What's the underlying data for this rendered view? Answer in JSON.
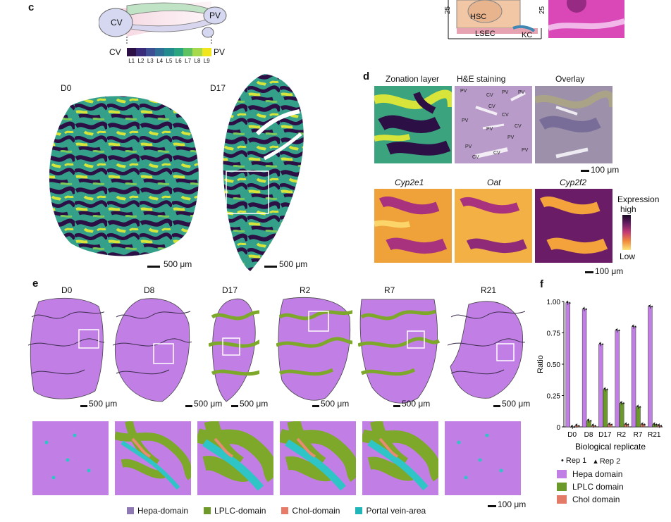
{
  "panels": {
    "c": {
      "letter": "c",
      "diagram": {
        "cv": "CV",
        "pv": "PV"
      },
      "scale": {
        "left": "CV",
        "right": "PV",
        "layers": [
          "L1",
          "L2",
          "L3",
          "L4",
          "L5",
          "L6",
          "L7",
          "L8",
          "L9"
        ],
        "colors": [
          "#2b0f45",
          "#3a2a7a",
          "#3b4f92",
          "#2f6f95",
          "#238a8e",
          "#2aa57f",
          "#5ec262",
          "#a6d94b",
          "#f1e51d"
        ]
      },
      "maps": [
        {
          "label": "D0",
          "scale": "500 μm"
        },
        {
          "label": "D17",
          "scale": "500 μm"
        }
      ]
    },
    "top_right": {
      "y1": "25",
      "y2": "25",
      "labels": [
        "HSC",
        "LSEC",
        "KC"
      ]
    },
    "d": {
      "letter": "d",
      "row1": [
        "Zonation layer",
        "H&E staining",
        "Overlay"
      ],
      "row1_scale": "100 μm",
      "tissue_labels": [
        "PV",
        "CV",
        "PV",
        "PV",
        "CV",
        "CV",
        "PV",
        "CV",
        "PV",
        "PV",
        "CV",
        "PV",
        "CV",
        "PV"
      ],
      "row2": [
        "Cyp2e1",
        "Oat",
        "Cyp2f2"
      ],
      "row2_scale": "100 μm",
      "legend": {
        "title": "Expression",
        "high": "high",
        "low": "Low"
      }
    },
    "e": {
      "letter": "e",
      "sections": [
        {
          "label": "D0",
          "scale": "500 μm"
        },
        {
          "label": "D8",
          "scale": "500 μm"
        },
        {
          "label": "D17",
          "scale": "500 μm"
        },
        {
          "label": "R2",
          "scale": "500 μm"
        },
        {
          "label": "R7",
          "scale": "500 μm"
        },
        {
          "label": "R21",
          "scale": "500 μm"
        }
      ],
      "zoom_scale": "100 μm",
      "legend": [
        {
          "label": "Hepa-domain",
          "color": "#8e79b4"
        },
        {
          "label": "LPLC-domain",
          "color": "#6f9a2a"
        },
        {
          "label": "Chol-domain",
          "color": "#e87a6a"
        },
        {
          "label": "Portal vein-area",
          "color": "#20b5b8"
        }
      ],
      "colors": {
        "hepa": "#c17fe6",
        "lplc": "#7da82a",
        "chol": "#e98a72",
        "portal": "#2fc4c6"
      }
    },
    "f": {
      "letter": "f",
      "legend_reps": [
        "Rep 1",
        "Rep 2"
      ],
      "legend_domains": [
        {
          "label": "Hepa domain",
          "color": "#c17fe6"
        },
        {
          "label": "LPLC domain",
          "color": "#6b9a2a"
        },
        {
          "label": "Chol domain",
          "color": "#e37a68"
        }
      ]
    }
  },
  "chart_data": {
    "type": "bar",
    "title": "",
    "xlabel": "Biological replicate",
    "ylabel": "Ratio",
    "ylim": [
      0,
      1
    ],
    "yticks": [
      "0",
      "0.25",
      "0.50",
      "0.75",
      "1.00"
    ],
    "categories": [
      "D0",
      "D8",
      "D17",
      "R2",
      "R7",
      "R21"
    ],
    "series": [
      {
        "name": "Hepa domain",
        "color": "#c17fe6",
        "values": [
          0.99,
          0.94,
          0.66,
          0.77,
          0.8,
          0.96
        ]
      },
      {
        "name": "LPLC domain",
        "color": "#6b9a2a",
        "values": [
          0.0,
          0.05,
          0.3,
          0.19,
          0.16,
          0.02
        ]
      },
      {
        "name": "Chol domain",
        "color": "#e37a68",
        "values": [
          0.01,
          0.01,
          0.02,
          0.02,
          0.02,
          0.01
        ]
      }
    ]
  }
}
